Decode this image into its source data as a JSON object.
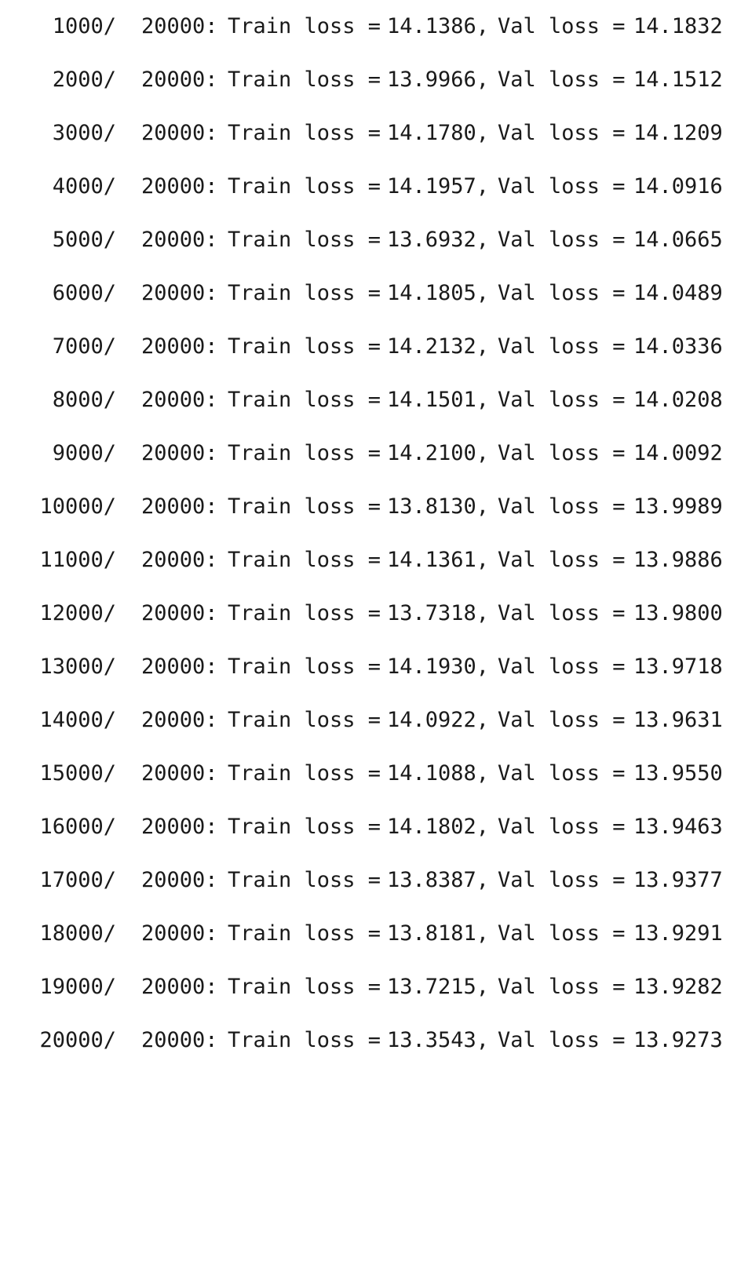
{
  "log": {
    "total_suffix": "20000:",
    "train_label": "Train loss =",
    "val_label": "Val loss =",
    "lines": [
      {
        "step": "1000/",
        "train": "14.1386,",
        "val": "14.1832"
      },
      {
        "step": "2000/",
        "train": "13.9966,",
        "val": "14.1512"
      },
      {
        "step": "3000/",
        "train": "14.1780,",
        "val": "14.1209"
      },
      {
        "step": "4000/",
        "train": "14.1957,",
        "val": "14.0916"
      },
      {
        "step": "5000/",
        "train": "13.6932,",
        "val": "14.0665"
      },
      {
        "step": "6000/",
        "train": "14.1805,",
        "val": "14.0489"
      },
      {
        "step": "7000/",
        "train": "14.2132,",
        "val": "14.0336"
      },
      {
        "step": "8000/",
        "train": "14.1501,",
        "val": "14.0208"
      },
      {
        "step": "9000/",
        "train": "14.2100,",
        "val": "14.0092"
      },
      {
        "step": "10000/",
        "train": "13.8130,",
        "val": "13.9989"
      },
      {
        "step": "11000/",
        "train": "14.1361,",
        "val": "13.9886"
      },
      {
        "step": "12000/",
        "train": "13.7318,",
        "val": "13.9800"
      },
      {
        "step": "13000/",
        "train": "14.1930,",
        "val": "13.9718"
      },
      {
        "step": "14000/",
        "train": "14.0922,",
        "val": "13.9631"
      },
      {
        "step": "15000/",
        "train": "14.1088,",
        "val": "13.9550"
      },
      {
        "step": "16000/",
        "train": "14.1802,",
        "val": "13.9463"
      },
      {
        "step": "17000/",
        "train": "13.8387,",
        "val": "13.9377"
      },
      {
        "step": "18000/",
        "train": "13.8181,",
        "val": "13.9291"
      },
      {
        "step": "19000/",
        "train": "13.7215,",
        "val": "13.9282"
      },
      {
        "step": "20000/",
        "train": "13.3543,",
        "val": "13.9273"
      }
    ]
  }
}
